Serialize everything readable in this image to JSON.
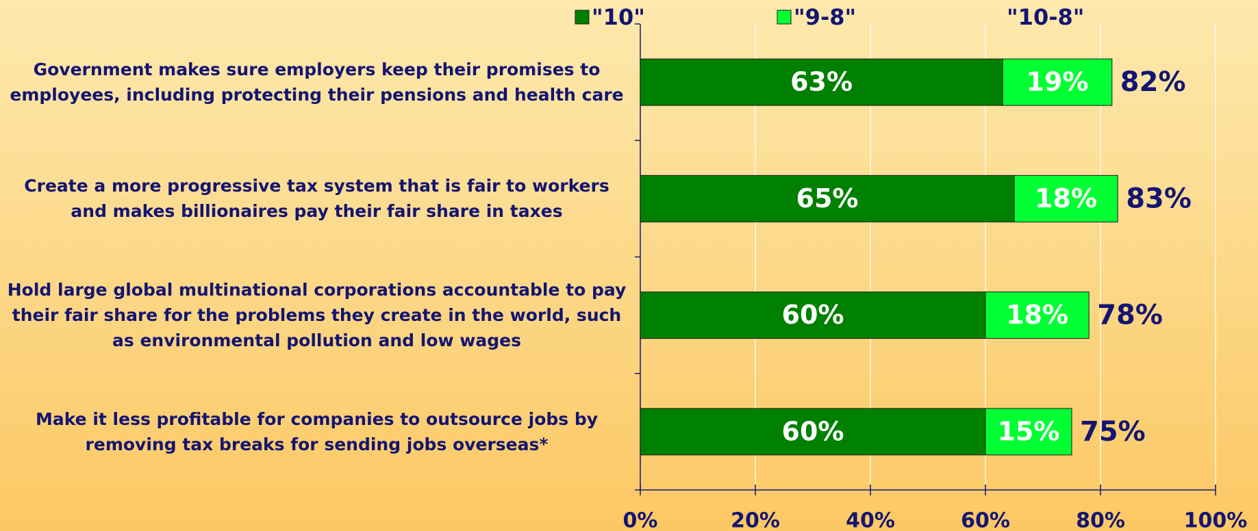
{
  "chart_data": {
    "type": "stacked-bar-horizontal",
    "categories": [
      "Government makes sure employers keep their promises to employees, including protecting their pensions and health care",
      "Create a more progressive tax system that is fair to workers and makes billionaires pay their fair share in taxes",
      "Hold large global multinational corporations accountable to pay their fair share for the problems they create in the world, such as environmental pollution and low wages",
      "Make it less profitable for companies to outsource jobs by removing tax breaks for sending jobs overseas*"
    ],
    "series": [
      {
        "name": "\"10\"",
        "color": "#008000",
        "values": [
          63,
          65,
          60,
          60
        ],
        "value_labels": [
          "63%",
          "65%",
          "60%",
          "60%"
        ]
      },
      {
        "name": "\"9-8\"",
        "color": "#00ff33",
        "values": [
          19,
          18,
          18,
          15
        ],
        "value_labels": [
          "19%",
          "18%",
          "18%",
          "15%"
        ]
      }
    ],
    "totals": {
      "name": "\"10-8\"",
      "values": [
        82,
        83,
        78,
        75
      ],
      "value_labels": [
        "82%",
        "83%",
        "78%",
        "75%"
      ]
    },
    "xlim": [
      0,
      100
    ],
    "xticks": [
      {
        "value": 0,
        "label": "0%"
      },
      {
        "value": 20,
        "label": "20%"
      },
      {
        "value": 40,
        "label": "40%"
      },
      {
        "value": 60,
        "label": "60%"
      },
      {
        "value": 80,
        "label": "80%"
      },
      {
        "value": 100,
        "label": "100%"
      }
    ],
    "grid": true
  }
}
